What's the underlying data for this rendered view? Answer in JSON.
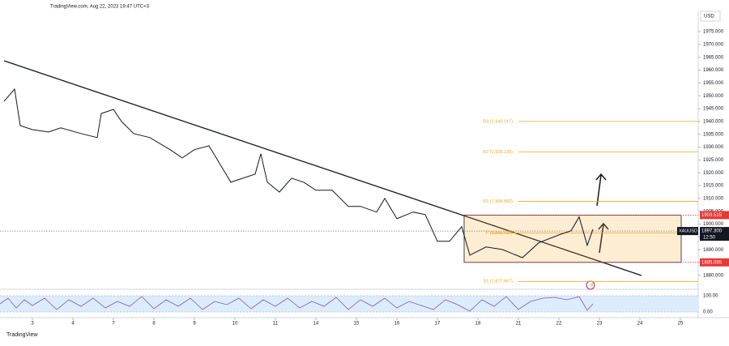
{
  "header": "TradingView.com, Aug 22, 2023 19:47 UTC+3",
  "currency": "USD",
  "footer": "TradingView",
  "chart_data": {
    "type": "line",
    "series": [
      {
        "name": "XAUUSD",
        "color": "#131722",
        "x": [
          -0.7,
          -0.44,
          -0.3,
          0,
          0.4,
          0.7,
          1.2,
          1.6,
          1.7,
          2,
          2.2,
          2.5,
          2.9,
          3.4,
          3.7,
          4,
          4.36,
          4.6,
          4.9,
          5.2,
          5.5,
          5.64,
          5.8,
          6.1,
          6.4,
          6.7,
          7,
          7.4,
          7.8,
          8.1,
          8.5,
          8.7,
          9,
          9.4,
          9.7,
          10,
          10.3,
          10.6,
          10.8,
          11.2,
          11.6,
          12.1,
          12.5,
          13,
          13.3,
          13.5,
          13.7,
          13.84
        ],
        "values": [
          1947.9,
          1952.6,
          1938.4,
          1936.8,
          1935.9,
          1937.5,
          1935.3,
          1933.7,
          1943.1,
          1944.7,
          1940,
          1935.3,
          1933.7,
          1929,
          1925.8,
          1929,
          1930.5,
          1924.2,
          1916.3,
          1917.9,
          1919.5,
          1927.4,
          1916.3,
          1912.5,
          1917.9,
          1916.3,
          1913.2,
          1913.2,
          1906.9,
          1906.9,
          1904.7,
          1910,
          1902.1,
          1904.7,
          1903.7,
          1893.3,
          1893.3,
          1899,
          1887.9,
          1891.1,
          1890.1,
          1886.9,
          1892.7,
          1895.8,
          1897.4,
          1902.8,
          1891.7,
          1898
        ]
      }
    ],
    "xlim": [
      -0.8,
      16.44
    ],
    "xticks": [
      {
        "value": 0,
        "label": "3"
      },
      {
        "value": 1,
        "label": "4"
      },
      {
        "value": 2,
        "label": "7"
      },
      {
        "value": 3,
        "label": "8"
      },
      {
        "value": 4,
        "label": "9"
      },
      {
        "value": 5,
        "label": "10"
      },
      {
        "value": 6,
        "label": "11"
      },
      {
        "value": 7,
        "label": "14"
      },
      {
        "value": 8,
        "label": "15"
      },
      {
        "value": 9,
        "label": "16"
      },
      {
        "value": 10,
        "label": "17"
      },
      {
        "value": 11,
        "label": "18"
      },
      {
        "value": 12,
        "label": "21"
      },
      {
        "value": 13,
        "label": "22"
      },
      {
        "value": 14,
        "label": "23"
      },
      {
        "value": 15,
        "label": "24"
      },
      {
        "value": 16,
        "label": "25"
      }
    ],
    "ylim": [
      1874.6,
      1982.6
    ],
    "yticks": [
      {
        "value": 1975,
        "label": "1975.000"
      },
      {
        "value": 1970,
        "label": "1970.000"
      },
      {
        "value": 1965,
        "label": "1965.000"
      },
      {
        "value": 1960,
        "label": "1960.000"
      },
      {
        "value": 1955,
        "label": "1955.000"
      },
      {
        "value": 1950,
        "label": "1950.000"
      },
      {
        "value": 1945,
        "label": "1945.000"
      },
      {
        "value": 1940,
        "label": "1940.000"
      },
      {
        "value": 1935,
        "label": "1935.000"
      },
      {
        "value": 1930,
        "label": "1930.000"
      },
      {
        "value": 1925,
        "label": "1925.000"
      },
      {
        "value": 1920,
        "label": "1920.000"
      },
      {
        "value": 1915,
        "label": "1915.000"
      },
      {
        "value": 1910,
        "label": "1910.000"
      },
      {
        "value": 1905,
        "label": "1905.000"
      },
      {
        "value": 1900,
        "label": "1900.000"
      },
      {
        "value": 1895,
        "label": "1895.000"
      },
      {
        "value": 1890,
        "label": "1890.000"
      },
      {
        "value": 1885,
        "label": "1885.000"
      },
      {
        "value": 1880,
        "label": "1880.000"
      }
    ],
    "grid": false,
    "levels": [
      {
        "label": "R3 (1,940.017)",
        "value": 1940.017
      },
      {
        "label": "R2 (1,928.138)",
        "value": 1928.138
      },
      {
        "label": "R1 (1,908.842)",
        "value": 1908.842
      },
      {
        "label": "P (1,896.536)",
        "value": 1896.536
      },
      {
        "label": "S1 (1,877.667)",
        "value": 1877.667
      }
    ],
    "level_color": "#f5a623",
    "range_top": 1903.515,
    "range_bottom": 1885.085,
    "last_price": {
      "value": 1897.3,
      "label": "1897.300"
    },
    "symbol": "XAUUSD",
    "countdown": "12:50",
    "rsi_ticks": [
      {
        "value": 100,
        "label": "100.00"
      },
      {
        "value": 0,
        "label": "0.00"
      }
    ]
  }
}
